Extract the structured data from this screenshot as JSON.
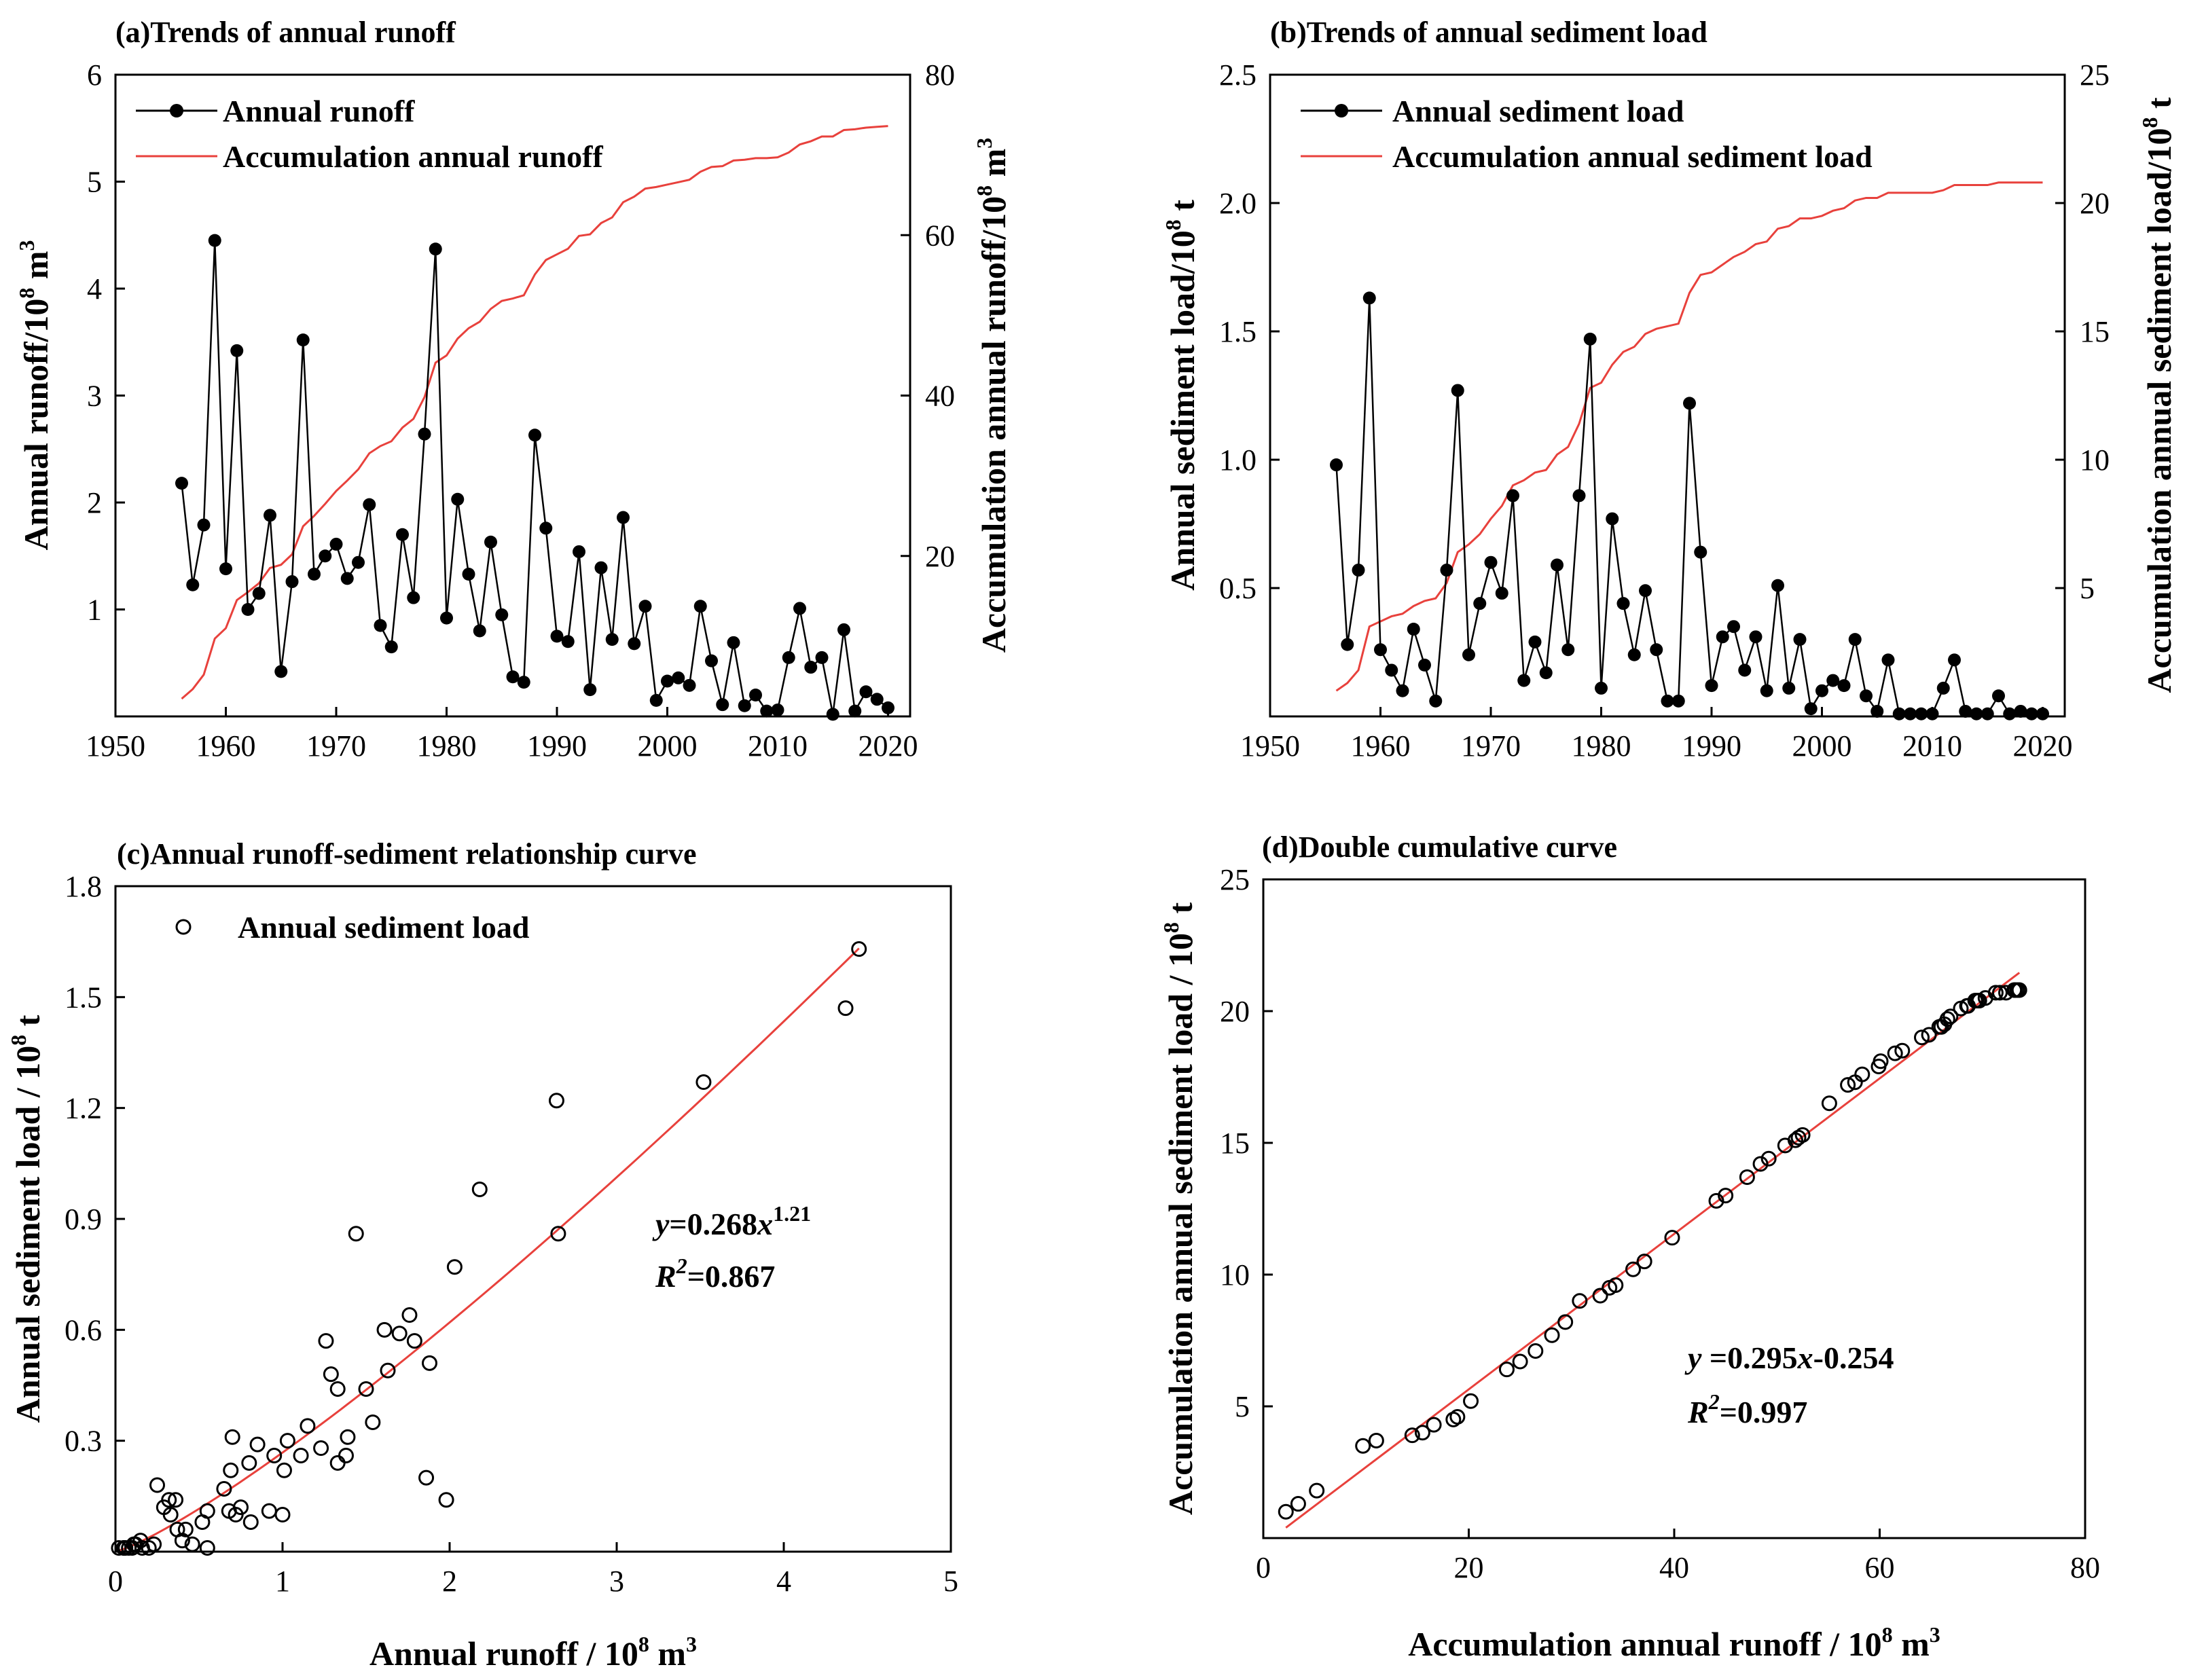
{
  "chart_data": [
    {
      "type": "line",
      "id": "a",
      "title": "(a)Trends of annual runoff",
      "xlabel": "",
      "ylabel": "Annual runoff/10^8 m^3",
      "ylabel_main": "Annual runoff/10",
      "ylabel_sup1": "8",
      "ylabel_mid": " m",
      "ylabel_sup2": "3",
      "y2label": "Accumulation annual runoff/10^8 m^3",
      "y2label_main": "Accumulation annual runoff/10",
      "y2label_sup1": "8",
      "y2label_mid": " m",
      "y2label_sup2": "3",
      "xlim": [
        1950,
        2022
      ],
      "ylim": [
        0,
        6
      ],
      "y2lim": [
        0,
        80
      ],
      "xticks": [
        1950,
        1960,
        1970,
        1980,
        1990,
        2000,
        2010,
        2020
      ],
      "yticks": [
        1,
        2,
        3,
        4,
        5,
        6
      ],
      "y2ticks": [
        20,
        40,
        60,
        80
      ],
      "legend": [
        "Annual runoff",
        "Accumulation annual runoff"
      ],
      "x": [
        1956,
        1957,
        1958,
        1959,
        1960,
        1961,
        1962,
        1963,
        1964,
        1965,
        1966,
        1967,
        1968,
        1969,
        1970,
        1971,
        1972,
        1973,
        1974,
        1975,
        1976,
        1977,
        1978,
        1979,
        1980,
        1981,
        1982,
        1983,
        1984,
        1985,
        1986,
        1987,
        1988,
        1989,
        1990,
        1991,
        1992,
        1993,
        1994,
        1995,
        1996,
        1997,
        1998,
        1999,
        2000,
        2001,
        2002,
        2003,
        2004,
        2005,
        2006,
        2007,
        2008,
        2009,
        2010,
        2011,
        2012,
        2013,
        2014,
        2015,
        2016,
        2017,
        2018,
        2019,
        2020
      ],
      "series": [
        {
          "name": "Annual runoff",
          "axis": "left",
          "values": [
            2.18,
            1.23,
            1.79,
            4.45,
            1.38,
            3.42,
            1.0,
            1.15,
            1.88,
            0.42,
            1.26,
            3.52,
            1.33,
            1.5,
            1.61,
            1.29,
            1.44,
            1.98,
            0.85,
            0.65,
            1.7,
            1.11,
            2.64,
            4.37,
            0.92,
            2.03,
            1.33,
            0.8,
            1.63,
            0.95,
            0.37,
            0.32,
            2.63,
            1.76,
            0.75,
            0.7,
            1.54,
            0.25,
            1.39,
            0.72,
            1.86,
            0.68,
            1.03,
            0.15,
            0.33,
            0.36,
            0.29,
            1.03,
            0.52,
            0.11,
            0.69,
            0.1,
            0.2,
            0.05,
            0.06,
            0.55,
            1.01,
            0.46,
            0.55,
            0.02,
            0.81,
            0.05,
            0.23,
            0.16,
            0.08
          ]
        },
        {
          "name": "Accumulation annual runoff",
          "axis": "right",
          "values": [
            2.2,
            3.4,
            5.2,
            9.7,
            11.0,
            14.5,
            15.5,
            16.6,
            18.5,
            18.9,
            20.2,
            23.7,
            25.0,
            26.5,
            28.1,
            29.4,
            30.8,
            32.8,
            33.7,
            34.3,
            36.0,
            37.1,
            39.8,
            44.1,
            45.0,
            47.1,
            48.4,
            49.2,
            50.8,
            51.8,
            52.1,
            52.5,
            55.1,
            56.9,
            57.6,
            58.3,
            59.9,
            60.1,
            61.5,
            62.2,
            64.1,
            64.8,
            65.8,
            66.0,
            66.3,
            66.6,
            66.9,
            67.9,
            68.5,
            68.6,
            69.3,
            69.4,
            69.6,
            69.6,
            69.7,
            70.3,
            71.3,
            71.7,
            72.3,
            72.3,
            73.1,
            73.2,
            73.4,
            73.5,
            73.6
          ]
        }
      ]
    },
    {
      "type": "line",
      "id": "b",
      "title": "(b)Trends of annual sediment load",
      "xlabel": "",
      "ylabel": "Annual sediment load/10^8 t",
      "ylabel_main": "Annual sediment load/10",
      "ylabel_sup1": "8",
      "ylabel_mid": " t",
      "y2label": "Accumulation annual sediment load/10^8 t",
      "y2label_main": "Accumulation annual sediment load/10",
      "y2label_sup1": "8",
      "y2label_mid": " t",
      "xlim": [
        1950,
        2022
      ],
      "ylim": [
        0,
        2.5
      ],
      "y2lim": [
        0,
        25
      ],
      "xticks": [
        1950,
        1960,
        1970,
        1980,
        1990,
        2000,
        2010,
        2020
      ],
      "yticks": [
        "0.5",
        "1.0",
        "1.5",
        "2.0",
        "2.5"
      ],
      "y2ticks": [
        5,
        10,
        15,
        20,
        25
      ],
      "legend": [
        "Annual sediment load",
        "Accumulation annual sediment load"
      ],
      "x": [
        1956,
        1957,
        1958,
        1959,
        1960,
        1961,
        1962,
        1963,
        1964,
        1965,
        1966,
        1967,
        1968,
        1969,
        1970,
        1971,
        1972,
        1973,
        1974,
        1975,
        1976,
        1977,
        1978,
        1979,
        1980,
        1981,
        1982,
        1983,
        1984,
        1985,
        1986,
        1987,
        1988,
        1989,
        1990,
        1991,
        1992,
        1993,
        1994,
        1995,
        1996,
        1997,
        1998,
        1999,
        2000,
        2001,
        2002,
        2003,
        2004,
        2005,
        2006,
        2007,
        2008,
        2009,
        2010,
        2011,
        2012,
        2013,
        2014,
        2015,
        2016,
        2017,
        2018,
        2019,
        2020
      ],
      "series": [
        {
          "name": "Annual sediment load",
          "axis": "left",
          "values": [
            0.98,
            0.28,
            0.57,
            1.63,
            0.26,
            0.18,
            0.1,
            0.34,
            0.2,
            0.06,
            0.57,
            1.27,
            0.24,
            0.44,
            0.6,
            0.48,
            0.86,
            0.14,
            0.29,
            0.17,
            0.59,
            0.26,
            0.86,
            1.47,
            0.11,
            0.77,
            0.44,
            0.24,
            0.49,
            0.26,
            0.06,
            0.06,
            1.22,
            0.64,
            0.12,
            0.31,
            0.35,
            0.18,
            0.31,
            0.1,
            0.51,
            0.11,
            0.3,
            0.03,
            0.1,
            0.14,
            0.12,
            0.3,
            0.08,
            0.02,
            0.22,
            0.01,
            0.01,
            0.01,
            0.01,
            0.11,
            0.22,
            0.02,
            0.01,
            0.01,
            0.08,
            0.01,
            0.02,
            0.01,
            0.01
          ]
        },
        {
          "name": "Accumulation annual sediment load",
          "axis": "right",
          "values": [
            1.0,
            1.3,
            1.8,
            3.5,
            3.7,
            3.9,
            4.0,
            4.3,
            4.5,
            4.6,
            5.2,
            6.4,
            6.7,
            7.1,
            7.7,
            8.2,
            9.0,
            9.2,
            9.5,
            9.6,
            10.2,
            10.5,
            11.4,
            12.8,
            13.0,
            13.7,
            14.2,
            14.4,
            14.9,
            15.1,
            15.2,
            15.3,
            16.5,
            17.2,
            17.3,
            17.6,
            17.9,
            18.1,
            18.4,
            18.5,
            19.0,
            19.1,
            19.4,
            19.4,
            19.5,
            19.7,
            19.8,
            20.1,
            20.2,
            20.2,
            20.4,
            20.4,
            20.4,
            20.4,
            20.4,
            20.5,
            20.7,
            20.7,
            20.7,
            20.7,
            20.8,
            20.8,
            20.8,
            20.8,
            20.8
          ]
        }
      ]
    },
    {
      "type": "scatter",
      "id": "c",
      "title": "(c)Annual runoff-sediment relationship curve",
      "xlabel": "Annual runoff / 10^8 m^3",
      "xlabel_main": "Annual runoff / 10",
      "xlabel_sup1": "8",
      "xlabel_mid": " m",
      "xlabel_sup2": "3",
      "ylabel": "Annual sediment load / 10^8 t",
      "ylabel_main": "Annual sediment load / 10",
      "ylabel_sup1": "8",
      "ylabel_mid": " t",
      "xlim": [
        0,
        5
      ],
      "ylim": [
        0,
        1.8
      ],
      "xticks": [
        0,
        1,
        2,
        3,
        4,
        5
      ],
      "yticks": [
        "0.3",
        "0.6",
        "0.9",
        "1.2",
        "1.5",
        "1.8"
      ],
      "legend": [
        "Annual sediment load"
      ],
      "points": [
        [
          2.18,
          0.98
        ],
        [
          1.23,
          0.28
        ],
        [
          1.79,
          0.57
        ],
        [
          4.45,
          1.63
        ],
        [
          1.38,
          0.26
        ],
        [
          3.52,
          1.27
        ],
        [
          1.0,
          0.1
        ],
        [
          1.15,
          0.34
        ],
        [
          1.88,
          0.51
        ],
        [
          0.42,
          0.06
        ],
        [
          1.26,
          0.57
        ],
        [
          4.37,
          1.47
        ],
        [
          1.33,
          0.24
        ],
        [
          1.5,
          0.44
        ],
        [
          1.61,
          0.6
        ],
        [
          1.29,
          0.48
        ],
        [
          1.44,
          0.86
        ],
        [
          1.98,
          0.14
        ],
        [
          0.85,
          0.29
        ],
        [
          0.65,
          0.17
        ],
        [
          1.7,
          0.59
        ],
        [
          1.11,
          0.26
        ],
        [
          2.65,
          0.86
        ],
        [
          2.64,
          1.22
        ],
        [
          0.92,
          0.11
        ],
        [
          2.03,
          0.77
        ],
        [
          1.33,
          0.44
        ],
        [
          0.8,
          0.24
        ],
        [
          1.63,
          0.49
        ],
        [
          0.95,
          0.26
        ],
        [
          0.37,
          0.06
        ],
        [
          0.32,
          0.14
        ],
        [
          1.76,
          0.64
        ],
        [
          0.75,
          0.12
        ],
        [
          0.7,
          0.31
        ],
        [
          1.54,
          0.35
        ],
        [
          0.25,
          0.18
        ],
        [
          1.39,
          0.31
        ],
        [
          0.72,
          0.1
        ],
        [
          1.86,
          0.2
        ],
        [
          0.68,
          0.11
        ],
        [
          1.03,
          0.3
        ],
        [
          0.15,
          0.03
        ],
        [
          0.33,
          0.1
        ],
        [
          0.36,
          0.14
        ],
        [
          0.29,
          0.12
        ],
        [
          0.52,
          0.08
        ],
        [
          0.11,
          0.02
        ],
        [
          0.69,
          0.22
        ],
        [
          0.1,
          0.01
        ],
        [
          0.2,
          0.01
        ],
        [
          0.05,
          0.01
        ],
        [
          0.06,
          0.01
        ],
        [
          0.55,
          0.11
        ],
        [
          1.01,
          0.22
        ],
        [
          0.46,
          0.02
        ],
        [
          0.55,
          0.01
        ],
        [
          0.02,
          0.01
        ],
        [
          0.81,
          0.08
        ],
        [
          0.05,
          0.01
        ],
        [
          0.23,
          0.02
        ],
        [
          0.16,
          0.01
        ],
        [
          0.08,
          0.01
        ],
        [
          0.4,
          0.03
        ],
        [
          0.12,
          0.02
        ]
      ],
      "fit": {
        "a": 0.268,
        "b": 1.21,
        "xrange": [
          0.02,
          4.45
        ]
      },
      "annotation": {
        "eq_y": "y",
        "eq_body": "=0.268",
        "eq_x": "x",
        "eq_exp": "1.21",
        "r_R": "R",
        "r_sup": "2",
        "r_val": "=0.867"
      }
    },
    {
      "type": "scatter",
      "id": "d",
      "title": "(d)Double cumulative curve",
      "xlabel": "Accumulation annual runoff / 10^8 m^3",
      "xlabel_main": "Accumulation annual runoff / 10",
      "xlabel_sup1": "8",
      "xlabel_mid": " m",
      "xlabel_sup2": "3",
      "ylabel": "Accumulation annual sediment load / 10^8 t",
      "ylabel_main": "Accumulation annual sediment load / 10",
      "ylabel_sup1": "8",
      "ylabel_mid": " t",
      "xlim": [
        0,
        80
      ],
      "ylim": [
        0,
        25
      ],
      "xticks": [
        0,
        20,
        40,
        60,
        80
      ],
      "yticks": [
        5,
        10,
        15,
        20,
        25
      ],
      "points": [
        [
          2.2,
          1.0
        ],
        [
          3.4,
          1.3
        ],
        [
          5.2,
          1.8
        ],
        [
          9.7,
          3.5
        ],
        [
          11.0,
          3.7
        ],
        [
          14.5,
          3.9
        ],
        [
          15.5,
          4.0
        ],
        [
          16.6,
          4.3
        ],
        [
          18.5,
          4.5
        ],
        [
          18.9,
          4.6
        ],
        [
          20.2,
          5.2
        ],
        [
          23.7,
          6.4
        ],
        [
          25.0,
          6.7
        ],
        [
          26.5,
          7.1
        ],
        [
          28.1,
          7.7
        ],
        [
          29.4,
          8.2
        ],
        [
          30.8,
          9.0
        ],
        [
          32.8,
          9.2
        ],
        [
          33.7,
          9.5
        ],
        [
          34.3,
          9.6
        ],
        [
          36.0,
          10.2
        ],
        [
          37.1,
          10.5
        ],
        [
          39.8,
          11.4
        ],
        [
          44.1,
          12.8
        ],
        [
          45.0,
          13.0
        ],
        [
          47.1,
          13.7
        ],
        [
          48.4,
          14.2
        ],
        [
          49.2,
          14.4
        ],
        [
          50.8,
          14.9
        ],
        [
          51.8,
          15.1
        ],
        [
          52.1,
          15.2
        ],
        [
          52.5,
          15.3
        ],
        [
          55.1,
          16.5
        ],
        [
          56.9,
          17.2
        ],
        [
          57.6,
          17.3
        ],
        [
          58.3,
          17.6
        ],
        [
          59.9,
          17.9
        ],
        [
          60.1,
          18.1
        ],
        [
          61.5,
          18.4
        ],
        [
          62.2,
          18.5
        ],
        [
          64.1,
          19.0
        ],
        [
          64.8,
          19.1
        ],
        [
          65.8,
          19.4
        ],
        [
          66.0,
          19.4
        ],
        [
          66.3,
          19.5
        ],
        [
          66.6,
          19.7
        ],
        [
          66.9,
          19.8
        ],
        [
          67.9,
          20.1
        ],
        [
          68.5,
          20.2
        ],
        [
          68.6,
          20.2
        ],
        [
          69.3,
          20.4
        ],
        [
          69.4,
          20.4
        ],
        [
          69.6,
          20.4
        ],
        [
          69.7,
          20.4
        ],
        [
          70.3,
          20.5
        ],
        [
          71.3,
          20.7
        ],
        [
          71.7,
          20.7
        ],
        [
          72.3,
          20.7
        ],
        [
          73.1,
          20.8
        ],
        [
          73.2,
          20.8
        ],
        [
          73.4,
          20.8
        ],
        [
          73.6,
          20.8
        ]
      ],
      "fit": {
        "slope": 0.295,
        "intercept": -0.254,
        "xrange": [
          2.2,
          73.6
        ]
      },
      "annotation": {
        "eq_y": "y",
        "eq_body": " =0.295",
        "eq_x": "x",
        "eq_tail": "-0.254",
        "r_R": "R",
        "r_sup": "2",
        "r_val": "=0.997"
      }
    }
  ],
  "colors": {
    "accent": "#e8413c",
    "axis": "#000000",
    "marker": "#000000"
  }
}
